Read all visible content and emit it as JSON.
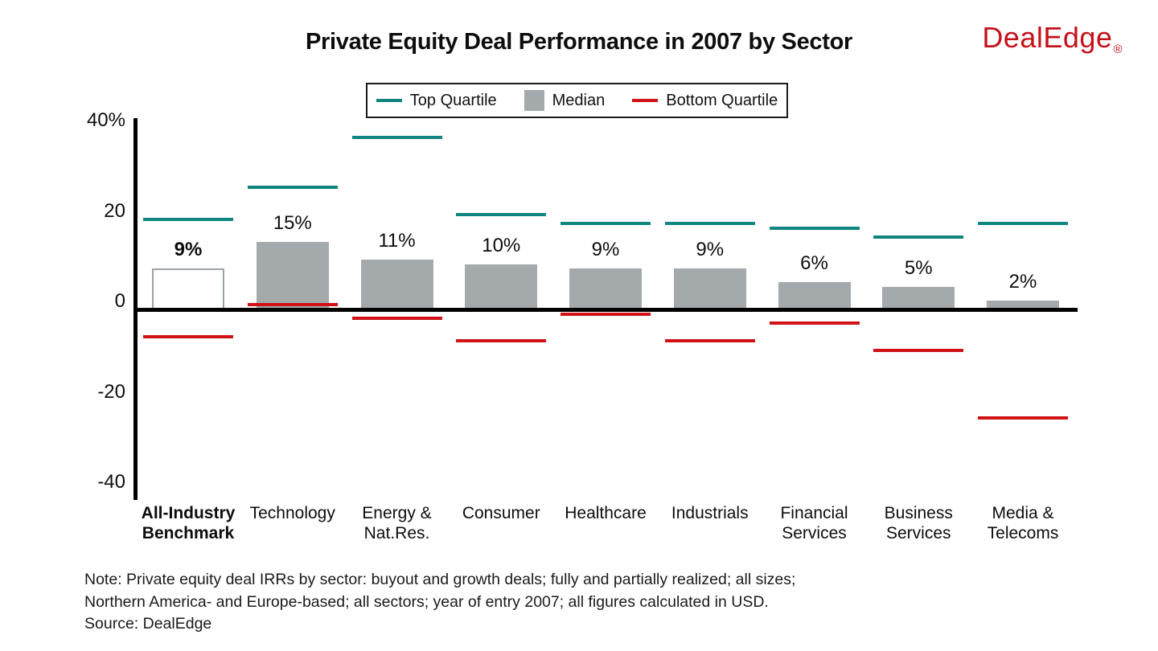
{
  "header": {
    "title": "Private Equity Deal Performance in 2007 by Sector",
    "logo": {
      "text": "DealEdge",
      "registered_mark": "®",
      "color": "#c5121a"
    }
  },
  "legend": {
    "items": [
      {
        "label": "Top Quartile",
        "swatch": "line",
        "color": "#108580"
      },
      {
        "label": "Median",
        "swatch": "square",
        "color": "#a4a9ac"
      },
      {
        "label": "Bottom Quartile",
        "swatch": "line",
        "color": "#d01217"
      }
    ]
  },
  "chart_data": {
    "type": "bar",
    "title": "Private Equity Deal Performance in 2007 by Sector",
    "unit": "percent IRR",
    "categories": [
      "All-Industry Benchmark",
      "Technology",
      "Energy & Nat.Res.",
      "Consumer",
      "Healthcare",
      "Industrials",
      "Financial Services",
      "Business Services",
      "Media & Telecoms"
    ],
    "category_label_lines": [
      [
        "All-Industry",
        "Benchmark"
      ],
      [
        "Technology"
      ],
      [
        "Energy &",
        "Nat.Res."
      ],
      [
        "Consumer"
      ],
      [
        "Healthcare"
      ],
      [
        "Industrials"
      ],
      [
        "Financial",
        "Services"
      ],
      [
        "Business",
        "Services"
      ],
      [
        "Media &",
        "Telecoms"
      ]
    ],
    "benchmark_index": 0,
    "series": [
      {
        "name": "Top Quartile",
        "style": "line",
        "color": "#108580",
        "values": [
          20,
          27,
          38,
          21,
          19,
          19,
          18,
          16,
          19
        ]
      },
      {
        "name": "Median",
        "style": "bar",
        "color": "#a4a9ac",
        "values": [
          9,
          15,
          11,
          10,
          9,
          9,
          6,
          5,
          2
        ]
      },
      {
        "name": "Bottom Quartile",
        "style": "line",
        "color": "#d01217",
        "values": [
          -6,
          1,
          -2,
          -7,
          -1,
          -7,
          -3,
          -9,
          -24
        ]
      }
    ],
    "bar_value_labels": [
      "9%",
      "15%",
      "11%",
      "10%",
      "9%",
      "9%",
      "6%",
      "5%",
      "2%"
    ],
    "y_axis": {
      "ticks": [
        {
          "value": 40,
          "label": "40%"
        },
        {
          "value": 20,
          "label": "20"
        },
        {
          "value": 0,
          "label": "0"
        },
        {
          "value": -20,
          "label": "-20"
        },
        {
          "value": -40,
          "label": "-40"
        }
      ],
      "ylim": [
        -42,
        42
      ]
    },
    "grid": false,
    "legend_position": "top"
  },
  "footnote": {
    "line1": "Note: Private equity deal IRRs by sector: buyout and growth deals; fully and partially realized; all sizes;",
    "line2": "Northern America- and Europe-based; all sectors; year of entry 2007; all figures calculated in USD.",
    "line3": "Source: DealEdge"
  }
}
